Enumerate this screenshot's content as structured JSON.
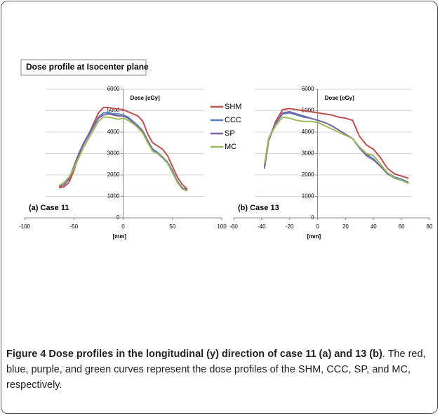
{
  "figure_title": "Dose profile at Isocenter plane",
  "chart_data": [
    {
      "type": "line",
      "x_label": "[mm]",
      "y_label": "Dose [cGy]",
      "annotation": "(a) Case 11",
      "legend": "right",
      "xlim": [
        -100,
        100
      ],
      "xticks": [
        -100,
        -50,
        0,
        50,
        100
      ],
      "ylim": [
        0,
        6000
      ],
      "yticks": [
        0,
        1000,
        2000,
        3000,
        4000,
        5000,
        6000
      ],
      "grid": true,
      "x": [
        -65,
        -60,
        -55,
        -50,
        -45,
        -40,
        -35,
        -30,
        -25,
        -20,
        -15,
        -10,
        -5,
        0,
        5,
        10,
        15,
        20,
        25,
        30,
        35,
        40,
        45,
        50,
        55,
        60,
        65
      ],
      "series": [
        {
          "name": "SHM",
          "color": "#c0504d",
          "values": [
            1400,
            1450,
            1650,
            2200,
            2900,
            3500,
            3900,
            4400,
            4900,
            5150,
            5150,
            5100,
            5080,
            5050,
            4950,
            4850,
            4750,
            4500,
            3900,
            3500,
            3350,
            3200,
            2900,
            2400,
            1900,
            1550,
            1350
          ]
        },
        {
          "name": "CCC",
          "color": "#4f81bd",
          "values": [
            1450,
            1550,
            1800,
            2400,
            3000,
            3500,
            3900,
            4300,
            4700,
            4900,
            4900,
            4850,
            4850,
            4800,
            4700,
            4500,
            4300,
            4050,
            3600,
            3200,
            3050,
            2850,
            2600,
            2200,
            1700,
            1400,
            1300
          ]
        },
        {
          "name": "SP",
          "color": "#8064a2",
          "values": [
            1450,
            1550,
            1800,
            2400,
            3000,
            3450,
            3850,
            4250,
            4650,
            4800,
            4850,
            4800,
            4750,
            4750,
            4650,
            4450,
            4250,
            4000,
            3550,
            3150,
            3000,
            2800,
            2550,
            2150,
            1700,
            1400,
            1300
          ]
        },
        {
          "name": "MC",
          "color": "#9bbb59",
          "values": [
            1500,
            1650,
            1900,
            2300,
            2800,
            3300,
            3700,
            4100,
            4500,
            4700,
            4700,
            4650,
            4600,
            4650,
            4550,
            4400,
            4200,
            3950,
            3500,
            3100,
            3000,
            2850,
            2550,
            2100,
            1650,
            1350,
            1250
          ]
        }
      ]
    },
    {
      "type": "line",
      "x_label": "[mm]",
      "y_label": "Dose [cGy]",
      "annotation": "(b) Case 13",
      "xlim": [
        -60,
        80
      ],
      "xticks": [
        -60,
        -40,
        -20,
        0,
        20,
        40,
        60,
        80
      ],
      "ylim": [
        0,
        6000
      ],
      "yticks": [
        0,
        1000,
        2000,
        3000,
        4000,
        5000,
        6000
      ],
      "grid": true,
      "x": [
        -38,
        -35,
        -30,
        -25,
        -20,
        -15,
        -10,
        -5,
        0,
        5,
        10,
        15,
        20,
        25,
        30,
        35,
        40,
        45,
        50,
        55,
        60,
        65
      ],
      "series": [
        {
          "color": "#c0504d",
          "values": [
            2400,
            3600,
            4500,
            5050,
            5100,
            5050,
            5000,
            4950,
            4900,
            4850,
            4800,
            4700,
            4650,
            4550,
            3800,
            3400,
            3200,
            2800,
            2300,
            2050,
            1950,
            1850
          ]
        },
        {
          "color": "#4f81bd",
          "values": [
            2400,
            3700,
            4400,
            4850,
            4900,
            4800,
            4700,
            4650,
            4550,
            4450,
            4300,
            4100,
            3900,
            3700,
            3300,
            2950,
            2750,
            2400,
            2100,
            1900,
            1800,
            1650
          ]
        },
        {
          "color": "#8064a2",
          "values": [
            2300,
            3600,
            4400,
            4900,
            4950,
            4850,
            4750,
            4650,
            4550,
            4450,
            4300,
            4100,
            3900,
            3700,
            3250,
            2900,
            2700,
            2400,
            2050,
            1850,
            1750,
            1650
          ]
        },
        {
          "color": "#9bbb59",
          "values": [
            2500,
            3700,
            4300,
            4700,
            4650,
            4550,
            4500,
            4500,
            4450,
            4300,
            4150,
            4000,
            3850,
            3700,
            3300,
            3000,
            2900,
            2500,
            2100,
            1850,
            1750,
            1600
          ]
        }
      ]
    }
  ],
  "caption": {
    "title": "Figure 4 Dose profiles in the longitudinal (y) direction of case 11 (a) and 13 (b)",
    "text": ". The red, blue, purple, and green curves represent the dose profiles of the SHM, CCC, SP, and MC, respectively."
  }
}
